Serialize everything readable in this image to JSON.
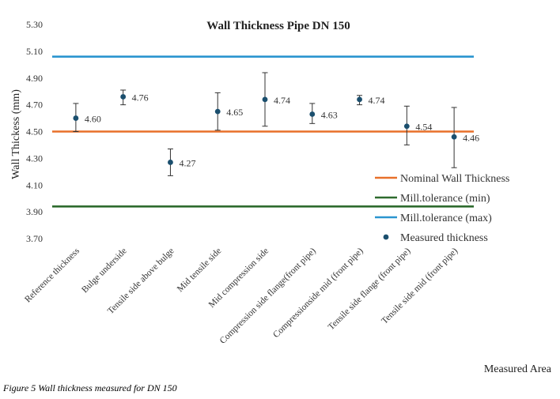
{
  "caption": "Figure 5 Wall thickness measured for DN 150",
  "chart_data": {
    "type": "scatter",
    "title": "Wall Thickness Pipe DN 150",
    "xlabel": "Measured Area",
    "ylabel": "Wall Thickess (mm)",
    "ylim": [
      3.7,
      5.3
    ],
    "yticks": [
      "3.70",
      "3.90",
      "4.10",
      "4.30",
      "4.50",
      "4.70",
      "4.90",
      "5.10",
      "5.30"
    ],
    "grid": false,
    "categories": [
      "Reference thickness",
      "Bulge underside",
      "Tensile side above bulge",
      "Mid tensile side",
      "Mid compression side",
      "Compression side flange(front pipe)",
      "Compressionside mid (front pipe)",
      "Tensile side flange (front pipe)",
      "Tensile side mid (front pipe)"
    ],
    "series": [
      {
        "name": "Measured thickness",
        "values": [
          4.6,
          4.76,
          4.27,
          4.65,
          4.74,
          4.63,
          4.74,
          4.54,
          4.46
        ],
        "labels": [
          "4.60",
          "4.76",
          "4.27",
          "4.65",
          "4.74",
          "4.63",
          "4.74",
          "4.54",
          "4.46"
        ],
        "error_low": [
          4.5,
          4.7,
          4.17,
          4.51,
          4.54,
          4.56,
          4.7,
          4.4,
          4.23
        ],
        "error_high": [
          4.71,
          4.81,
          4.37,
          4.79,
          4.94,
          4.71,
          4.77,
          4.69,
          4.68
        ],
        "color": "#1b4f6e"
      }
    ],
    "reference_lines": [
      {
        "name": "Nominal Wall Thickness",
        "value": 4.5,
        "color": "#e8702a"
      },
      {
        "name": "Mill.tolerance (min)",
        "value": 3.94,
        "color": "#2e6b2e"
      },
      {
        "name": "Mill.tolerance (max)",
        "value": 5.06,
        "color": "#2b95cf"
      }
    ],
    "legend": [
      {
        "label": "Nominal Wall Thickness",
        "marker": "line",
        "color": "#e8702a"
      },
      {
        "label": "Mill.tolerance (min)",
        "marker": "line",
        "color": "#2e6b2e"
      },
      {
        "label": "Mill.tolerance (max)",
        "marker": "line",
        "color": "#2b95cf"
      },
      {
        "label": "Measured thickness",
        "marker": "dot",
        "color": "#1b4f6e"
      }
    ],
    "legend_position": "lower-right"
  }
}
